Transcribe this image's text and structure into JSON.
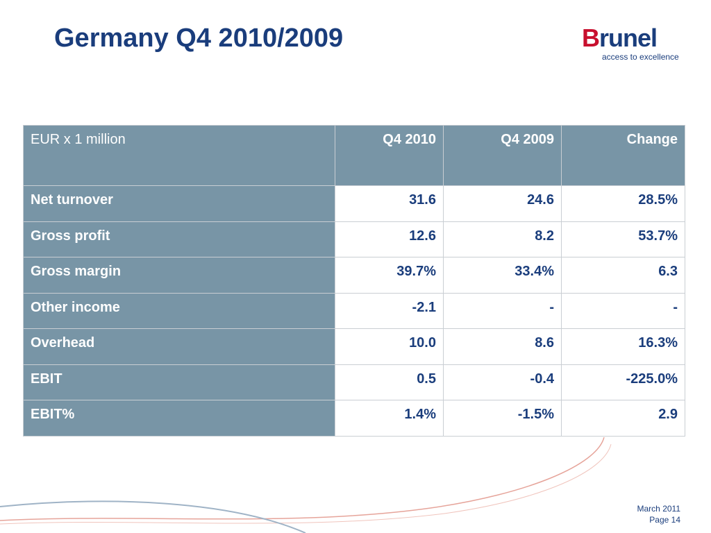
{
  "slide": {
    "title": "Germany Q4 2010/2009",
    "logo": {
      "brand_first_letter": "B",
      "brand_rest": "runel",
      "tagline": "access to excellence",
      "colors": {
        "red": "#c8102e",
        "blue": "#1a3d7c"
      }
    },
    "table": {
      "headers": [
        "EUR x 1 million",
        "Q4 2010",
        "Q4 2009",
        "Change"
      ],
      "rows": [
        {
          "label": "Net turnover",
          "values": [
            "31.6",
            "24.6",
            "28.5%"
          ]
        },
        {
          "label": "Gross profit",
          "values": [
            "12.6",
            "8.2",
            "53.7%"
          ]
        },
        {
          "label": "Gross margin",
          "values": [
            "39.7%",
            "33.4%",
            "6.3"
          ]
        },
        {
          "label": "Other income",
          "values": [
            "-2.1",
            "-",
            "-"
          ]
        },
        {
          "label": "Overhead",
          "values": [
            "10.0",
            "8.6",
            "16.3%"
          ]
        },
        {
          "label": "EBIT",
          "values": [
            "0.5",
            "-0.4",
            "-225.0%"
          ]
        },
        {
          "label": "EBIT%",
          "values": [
            "1.4%",
            "-1.5%",
            "2.9"
          ]
        }
      ],
      "colors": {
        "header_bg": "#7895a6",
        "value_text": "#1a3d7c"
      }
    },
    "footer": {
      "date": "March 2011",
      "page": "Page 14"
    }
  }
}
